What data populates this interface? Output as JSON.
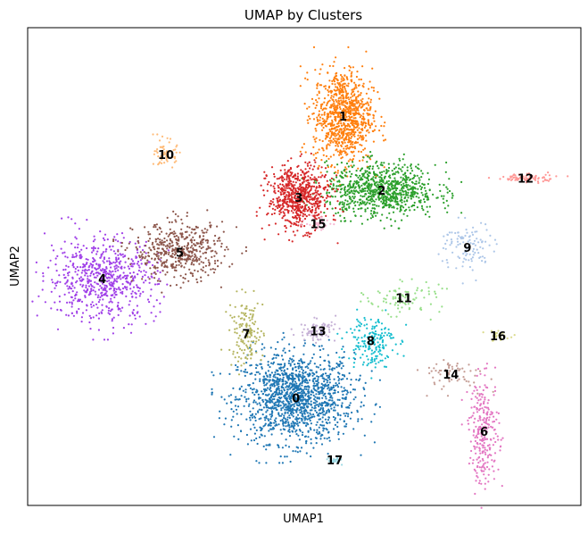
{
  "chart_data": {
    "type": "scatter",
    "title": "UMAP by Clusters",
    "xlabel": "UMAP1",
    "ylabel": "UMAP2",
    "xlim": [
      0,
      100
    ],
    "ylim": [
      0,
      100
    ],
    "grid": false,
    "legend": "on data",
    "clusters": [
      {
        "label": "0",
        "color": "#1f77b4",
        "center": [
          48.5,
          22.5
        ],
        "spread": [
          9.5,
          8.5
        ],
        "n": 1400
      },
      {
        "label": "1",
        "color": "#ff7f0e",
        "center": [
          57.0,
          81.5
        ],
        "spread": [
          4.8,
          9.0
        ],
        "n": 900
      },
      {
        "label": "2",
        "color": "#2ca02c",
        "center": [
          64.0,
          66.0
        ],
        "spread": [
          9.0,
          5.0
        ],
        "n": 850
      },
      {
        "label": "3",
        "color": "#d62728",
        "center": [
          49.0,
          64.5
        ],
        "spread": [
          5.0,
          6.0
        ],
        "n": 650
      },
      {
        "label": "4",
        "color": "#a040e8",
        "center": [
          13.5,
          47.5
        ],
        "spread": [
          9.0,
          8.0
        ],
        "n": 650
      },
      {
        "label": "5",
        "color": "#8c564b",
        "center": [
          27.5,
          53.0
        ],
        "spread": [
          7.5,
          5.5
        ],
        "n": 480
      },
      {
        "label": "6",
        "color": "#e377c2",
        "center": [
          82.5,
          15.5
        ],
        "spread": [
          2.5,
          10.0
        ],
        "n": 260
      },
      {
        "label": "7",
        "color": "#b5b560",
        "center": [
          39.5,
          36.0
        ],
        "spread": [
          2.8,
          6.5
        ],
        "n": 140
      },
      {
        "label": "8",
        "color": "#17becf",
        "center": [
          62.0,
          34.5
        ],
        "spread": [
          4.0,
          5.0
        ],
        "n": 180
      },
      {
        "label": "9",
        "color": "#aec7e8",
        "center": [
          79.5,
          54.0
        ],
        "spread": [
          4.5,
          5.0
        ],
        "n": 110
      },
      {
        "label": "10",
        "color": "#ffbb78",
        "center": [
          25.0,
          73.5
        ],
        "spread": [
          1.8,
          2.6
        ],
        "n": 60
      },
      {
        "label": "11",
        "color": "#98df8a",
        "center": [
          68.0,
          43.5
        ],
        "spread": [
          6.0,
          3.0
        ],
        "n": 90
      },
      {
        "label": "12",
        "color": "#ff9896",
        "center": [
          90.0,
          68.5
        ],
        "spread": [
          5.0,
          0.8
        ],
        "n": 80
      },
      {
        "label": "13",
        "color": "#c5b0d5",
        "center": [
          52.5,
          36.5
        ],
        "spread": [
          3.0,
          2.0
        ],
        "n": 80
      },
      {
        "label": "14",
        "color": "#c49c94",
        "center": [
          76.5,
          27.5
        ],
        "spread": [
          6.0,
          3.0
        ],
        "n": 60
      },
      {
        "label": "15",
        "color": "#f7b6d2",
        "center": [
          52.5,
          59.0
        ],
        "spread": [
          2.0,
          1.2
        ],
        "n": 40
      },
      {
        "label": "16",
        "color": "#dbdb8d",
        "center": [
          85.0,
          35.5
        ],
        "spread": [
          2.0,
          1.0
        ],
        "n": 25
      },
      {
        "label": "17",
        "color": "#9edae5",
        "center": [
          55.5,
          9.5
        ],
        "spread": [
          1.5,
          0.8
        ],
        "n": 25
      }
    ]
  }
}
